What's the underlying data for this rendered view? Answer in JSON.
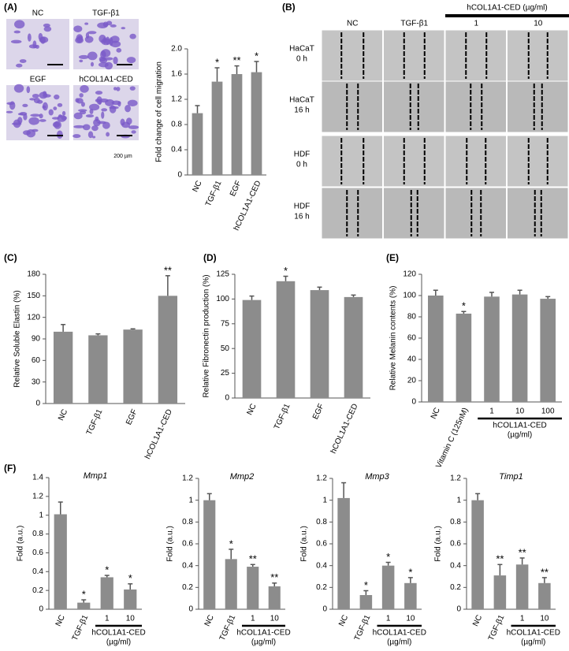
{
  "micrographs": {
    "panel": "(A)",
    "labels": [
      "NC",
      "TGF-β1",
      "EGF",
      "hCOL1A1-CED"
    ],
    "scale": "200 µm"
  },
  "wound_healing": {
    "panel": "(B)",
    "columns": [
      "NC",
      "TGF-β1",
      "1",
      "10"
    ],
    "column_group": "hCOL1A1-CED (µg/ml)",
    "rows": [
      [
        "HaCaT",
        "0 h"
      ],
      [
        "HaCaT",
        "16 h"
      ],
      [
        "HDF",
        "0 h"
      ],
      [
        "HDF",
        "16 h"
      ]
    ]
  },
  "chart_data": [
    {
      "type": "bar",
      "ylabel": "Fold change of cell migration",
      "categories": [
        "NC",
        "TGF-β1",
        "EGF",
        "hCOL1A1-CED"
      ],
      "values": [
        0.98,
        1.48,
        1.6,
        1.63
      ],
      "errors": [
        0.12,
        0.22,
        0.13,
        0.17
      ],
      "significance": [
        null,
        "*",
        "**",
        "*"
      ],
      "color": "#8c8c8c",
      "ylim": [
        0,
        2
      ],
      "yticks": [
        0,
        0.4,
        0.8,
        1.2,
        1.6,
        {
          "value": 2,
          "label": "2.0"
        }
      ]
    },
    {
      "type": "bar",
      "panel": "(C)",
      "ylabel": "Relative Soluble Elastin (%)",
      "categories": [
        "NC",
        "TGF-β1",
        "EGF",
        "hCOL1A1-CED"
      ],
      "values": [
        100,
        95,
        103,
        150
      ],
      "errors": [
        10,
        2,
        1,
        28
      ],
      "significance": [
        null,
        null,
        null,
        "**"
      ],
      "color": "#8c8c8c",
      "ylim": [
        0,
        180
      ],
      "yticks": [
        0,
        30,
        60,
        90,
        120,
        150,
        180
      ]
    },
    {
      "type": "bar",
      "panel": "(D)",
      "ylabel": "Relative Fibronectin production (%)",
      "categories": [
        "NC",
        "TGF-β1",
        "EGF",
        "hCOL1A1-CED"
      ],
      "values": [
        99,
        118,
        109,
        102
      ],
      "errors": [
        4,
        5,
        3,
        2
      ],
      "significance": [
        null,
        "*",
        null,
        null
      ],
      "color": "#8c8c8c",
      "ylim": [
        0,
        125
      ],
      "yticks": [
        0,
        25,
        50,
        75,
        100,
        125
      ]
    },
    {
      "type": "bar",
      "panel": "(E)",
      "ylabel": "Relative Melanin contents (%)",
      "categories": [
        "NC",
        "Vitamin C (125nM)",
        "1",
        "10",
        "100"
      ],
      "values": [
        100,
        83,
        99,
        101,
        97
      ],
      "errors": [
        5,
        2,
        4,
        4,
        2
      ],
      "significance": [
        null,
        "*",
        null,
        null,
        null
      ],
      "group_label": [
        "hCOL1A1-CED",
        "(µg/ml)"
      ],
      "color": "#8c8c8c",
      "ylim": [
        0,
        120
      ],
      "yticks": [
        0,
        20,
        40,
        60,
        80,
        100,
        120
      ]
    },
    {
      "type": "bar",
      "panel": "(F)",
      "title": "Mmp1",
      "ylabel": "Fold (a.u.)",
      "categories": [
        "NC",
        "TGF-β1",
        "1",
        "10"
      ],
      "values": [
        1.01,
        0.07,
        0.34,
        0.21
      ],
      "errors": [
        0.13,
        0.03,
        0.02,
        0.06
      ],
      "significance": [
        null,
        "*",
        "*",
        "*"
      ],
      "group_label": [
        "hCOL1A1-CED",
        "(µg/ml)"
      ],
      "color": "#8c8c8c",
      "ylim": [
        0,
        1.4
      ],
      "yticks": [
        0,
        0.2,
        0.4,
        0.6,
        0.8,
        1,
        1.2,
        1.4
      ]
    },
    {
      "type": "bar",
      "title": "Mmp2",
      "ylabel": "Fold (a.u.)",
      "categories": [
        "NC",
        "TGF-β1",
        "1",
        "10"
      ],
      "values": [
        1.0,
        0.46,
        0.39,
        0.21
      ],
      "errors": [
        0.06,
        0.09,
        0.02,
        0.03
      ],
      "significance": [
        null,
        "*",
        "**",
        "**"
      ],
      "group_label": [
        "hCOL1A1-CED",
        "(µg/ml)"
      ],
      "color": "#8c8c8c",
      "ylim": [
        0,
        1.2
      ],
      "yticks": [
        0,
        0.2,
        0.4,
        0.6,
        0.8,
        1,
        1.2
      ]
    },
    {
      "type": "bar",
      "title": "Mmp3",
      "ylabel": "Fold (a.u.)",
      "categories": [
        "NC",
        "TGF-β1",
        "1",
        "10"
      ],
      "values": [
        1.02,
        0.13,
        0.4,
        0.24
      ],
      "errors": [
        0.14,
        0.04,
        0.03,
        0.05
      ],
      "significance": [
        null,
        "*",
        "*",
        "*"
      ],
      "group_label": [
        "hCOL1A1-CED",
        "(µg/ml)"
      ],
      "color": "#8c8c8c",
      "ylim": [
        0,
        1.2
      ],
      "yticks": [
        0,
        0.2,
        0.4,
        0.6,
        0.8,
        1,
        1.2
      ]
    },
    {
      "type": "bar",
      "title": "Timp1",
      "ylabel": "Fold (a.u.)",
      "categories": [
        "NC",
        "TGF-β1",
        "1",
        "10"
      ],
      "values": [
        1.0,
        0.31,
        0.41,
        0.24
      ],
      "errors": [
        0.06,
        0.1,
        0.06,
        0.05
      ],
      "significance": [
        null,
        "**",
        "**",
        "**"
      ],
      "group_label": [
        "hCOL1A1-CED",
        "(µg/ml)"
      ],
      "color": "#8c8c8c",
      "ylim": [
        0,
        1.2
      ],
      "yticks": [
        0,
        0.2,
        0.4,
        0.6,
        0.8,
        1,
        1.2
      ]
    }
  ]
}
